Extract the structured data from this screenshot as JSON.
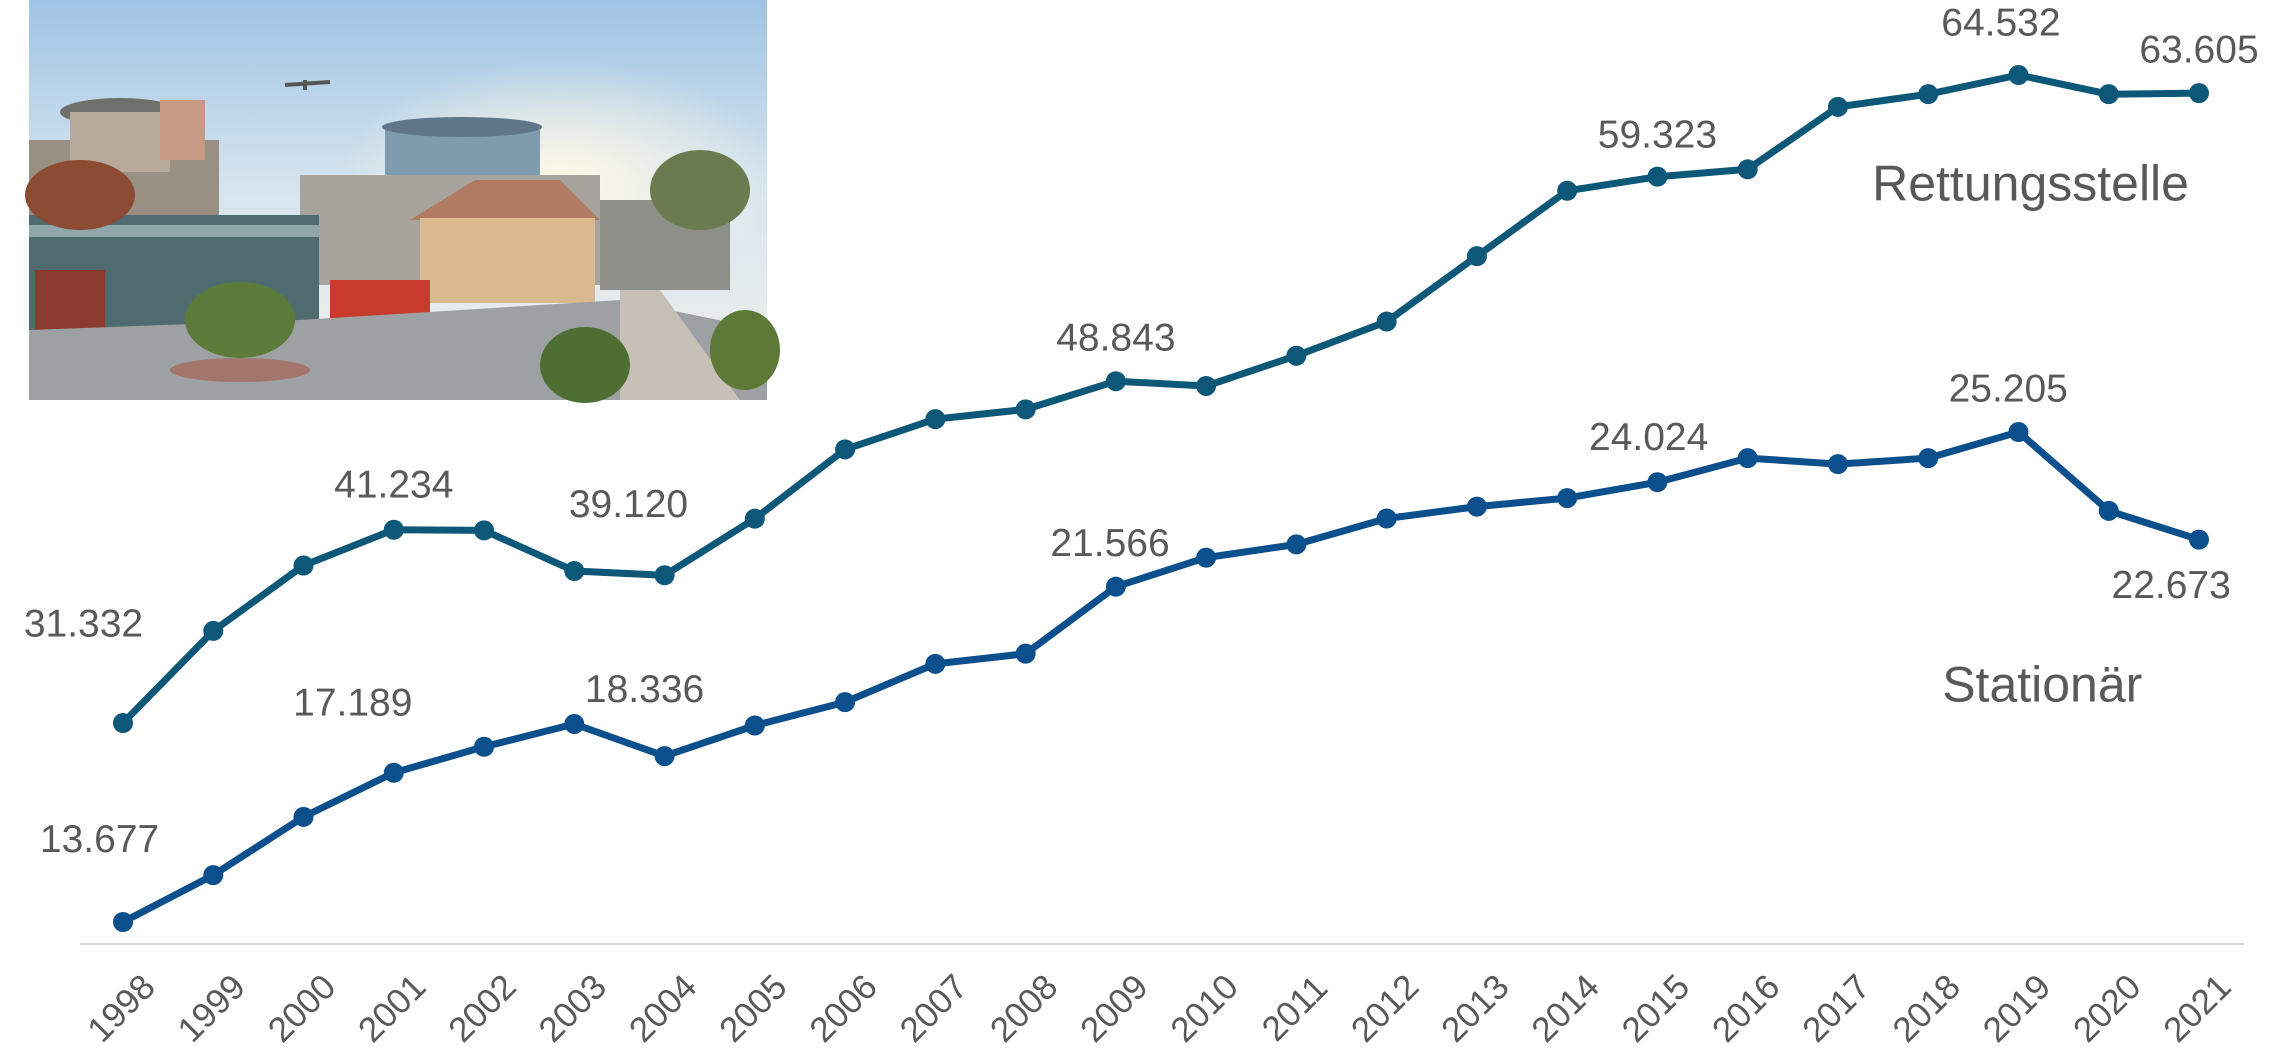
{
  "chart_data": {
    "type": "line",
    "categories": [
      "1998",
      "1999",
      "2000",
      "2001",
      "2002",
      "2003",
      "2004",
      "2005",
      "2006",
      "2007",
      "2008",
      "2009",
      "2010",
      "2011",
      "2012",
      "2013",
      "2014",
      "2015",
      "2016",
      "2017",
      "2018",
      "2019",
      "2020",
      "2021"
    ],
    "series": [
      {
        "name": "Rettungsstelle",
        "color": "#0d5878",
        "values": [
          31332,
          36050,
          39400,
          41234,
          41200,
          39120,
          38900,
          41800,
          45350,
          46900,
          47400,
          48843,
          48600,
          50150,
          51900,
          55250,
          58600,
          59323,
          59700,
          62900,
          63550,
          64532,
          63550,
          63605
        ],
        "value_labels": [
          "31.332",
          null,
          null,
          "41.234",
          null,
          "39.120",
          null,
          null,
          null,
          null,
          null,
          "48.843",
          null,
          null,
          null,
          null,
          null,
          "59.323",
          null,
          null,
          null,
          "64.532",
          null,
          "63.605"
        ]
      },
      {
        "name": "Stationär",
        "color": "#0b4f8c",
        "values": [
          13677,
          14780,
          16150,
          17189,
          17800,
          18336,
          17580,
          18300,
          18850,
          19750,
          19990,
          21566,
          22250,
          22560,
          23170,
          23450,
          23650,
          24024,
          24590,
          24450,
          24590,
          25205,
          23350,
          22673
        ],
        "value_labels": [
          "13.677",
          null,
          null,
          "17.189",
          null,
          "18.336",
          null,
          null,
          null,
          null,
          null,
          "21.566",
          null,
          null,
          null,
          null,
          null,
          "24.024",
          null,
          null,
          null,
          "25.205",
          null,
          "22.673"
        ]
      }
    ]
  }
}
